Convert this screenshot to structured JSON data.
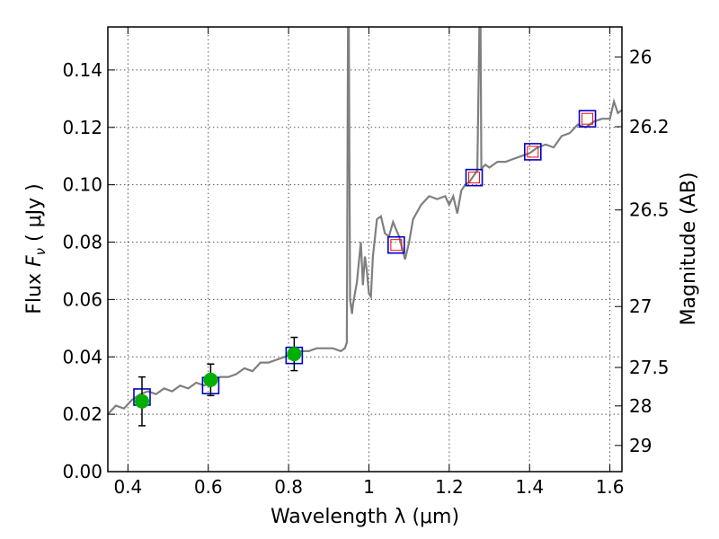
{
  "chart_data": {
    "type": "line",
    "title": "",
    "xlabel": "Wavelength  λ (μm)",
    "ylabel_parts": [
      "Flux  ",
      "F",
      "ν",
      "  (  μJy  )"
    ],
    "y2label": "Magnitude (AB)",
    "xlim": [
      0.35,
      1.63
    ],
    "ylim": [
      0.0,
      0.155
    ],
    "grid": true,
    "x_ticks": [
      0.4,
      0.6,
      0.8,
      1.0,
      1.2,
      1.4,
      1.6
    ],
    "x_tick_labels": [
      "0.4",
      "0.6",
      "0.8",
      "1",
      "1.2",
      "1.4",
      "1.6"
    ],
    "y_ticks": [
      0.0,
      0.02,
      0.04,
      0.06,
      0.08,
      0.1,
      0.12,
      0.14
    ],
    "y_tick_labels": [
      "0.00",
      "0.02",
      "0.04",
      "0.06",
      "0.08",
      "0.10",
      "0.12",
      "0.14"
    ],
    "y2_ticks": [
      26,
      26.2,
      26.5,
      27,
      27.5,
      28,
      29
    ],
    "y2_tick_labels": [
      "26",
      "26.2",
      "26.5",
      "27",
      "27.5",
      "28",
      "29"
    ],
    "colors": {
      "spectrum": "#7f7f7f",
      "observed": "#00b000",
      "model_box": "#0000cc",
      "model_inner": "#ff0000"
    },
    "series": [
      {
        "kind": "spectrum",
        "x": [
          0.35,
          0.37,
          0.39,
          0.41,
          0.43,
          0.45,
          0.47,
          0.49,
          0.51,
          0.53,
          0.55,
          0.57,
          0.59,
          0.61,
          0.63,
          0.65,
          0.67,
          0.69,
          0.71,
          0.73,
          0.75,
          0.77,
          0.79,
          0.81,
          0.83,
          0.85,
          0.87,
          0.89,
          0.91,
          0.93,
          0.94,
          0.945,
          0.948,
          0.95,
          0.953,
          0.958,
          0.96,
          0.97,
          0.98,
          0.985,
          0.99,
          0.995,
          1.0,
          1.005,
          1.01,
          1.02,
          1.03,
          1.04,
          1.05,
          1.06,
          1.075,
          1.09,
          1.1,
          1.11,
          1.13,
          1.15,
          1.17,
          1.19,
          1.2,
          1.21,
          1.22,
          1.23,
          1.24,
          1.25,
          1.26,
          1.27,
          1.275,
          1.278,
          1.28,
          1.283,
          1.29,
          1.3,
          1.32,
          1.34,
          1.36,
          1.38,
          1.4,
          1.42,
          1.44,
          1.46,
          1.48,
          1.5,
          1.52,
          1.54,
          1.56,
          1.58,
          1.6,
          1.61,
          1.62,
          1.63
        ],
        "y": [
          0.02,
          0.023,
          0.022,
          0.025,
          0.027,
          0.028,
          0.027,
          0.029,
          0.028,
          0.03,
          0.029,
          0.031,
          0.03,
          0.032,
          0.033,
          0.033,
          0.034,
          0.036,
          0.035,
          0.038,
          0.038,
          0.039,
          0.04,
          0.041,
          0.042,
          0.042,
          0.043,
          0.043,
          0.043,
          0.042,
          0.043,
          0.045,
          0.155,
          0.155,
          0.06,
          0.055,
          0.058,
          0.066,
          0.08,
          0.065,
          0.075,
          0.07,
          0.062,
          0.061,
          0.075,
          0.088,
          0.089,
          0.083,
          0.082,
          0.087,
          0.082,
          0.074,
          0.08,
          0.088,
          0.093,
          0.096,
          0.095,
          0.096,
          0.093,
          0.096,
          0.09,
          0.098,
          0.1,
          0.101,
          0.103,
          0.105,
          0.155,
          0.155,
          0.105,
          0.106,
          0.107,
          0.106,
          0.108,
          0.108,
          0.109,
          0.11,
          0.111,
          0.113,
          0.114,
          0.113,
          0.117,
          0.118,
          0.121,
          0.12,
          0.122,
          0.123,
          0.123,
          0.129,
          0.125,
          0.126
        ]
      },
      {
        "kind": "observed",
        "x": [
          0.435,
          0.606,
          0.814
        ],
        "y": [
          0.0245,
          0.032,
          0.041
        ],
        "err": [
          0.0085,
          0.0055,
          0.0058
        ]
      },
      {
        "kind": "model",
        "x": [
          0.435,
          0.606,
          0.814,
          1.068,
          1.262,
          1.408,
          1.544
        ],
        "y": [
          0.026,
          0.03,
          0.0405,
          0.079,
          0.1025,
          0.1115,
          0.123
        ]
      }
    ]
  }
}
